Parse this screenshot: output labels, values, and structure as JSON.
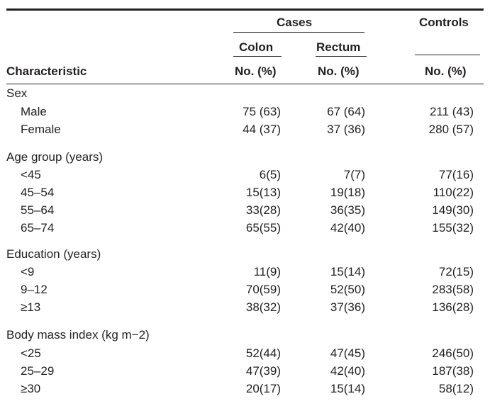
{
  "header": {
    "cases": "Cases",
    "controls": "Controls",
    "colon": "Colon",
    "rectum": "Rectum",
    "characteristic": "Characteristic",
    "colon_unit": "No. (%)",
    "rectum_unit": "No. (%)",
    "controls_unit": "No. (%)"
  },
  "sections": [
    {
      "title": "Sex",
      "rows": [
        {
          "label": "Male",
          "colon": "75 (63)",
          "rectum": "67 (64)",
          "controls": "211 (43)"
        },
        {
          "label": "Female",
          "colon": "44 (37)",
          "rectum": "37 (36)",
          "controls": "280 (57)"
        }
      ]
    },
    {
      "title": "Age group (years)",
      "rows": [
        {
          "label": "<45",
          "colon": "6(5)",
          "rectum": "7(7)",
          "controls": "77(16)"
        },
        {
          "label": "45–54",
          "colon": "15(13)",
          "rectum": "19(18)",
          "controls": "110(22)"
        },
        {
          "label": "55–64",
          "colon": "33(28)",
          "rectum": "36(35)",
          "controls": "149(30)"
        },
        {
          "label": "65–74",
          "colon": "65(55)",
          "rectum": "42(40)",
          "controls": "155(32)"
        }
      ]
    },
    {
      "title": "Education (years)",
      "rows": [
        {
          "label": "<9",
          "colon": "11(9)",
          "rectum": "15(14)",
          "controls": "72(15)"
        },
        {
          "label": "9–12",
          "colon": "70(59)",
          "rectum": "52(50)",
          "controls": "283(58)"
        },
        {
          "label": "≥13",
          "colon": "38(32)",
          "rectum": "37(36)",
          "controls": "136(28)"
        }
      ]
    },
    {
      "title": "Body mass index (kg m−2)",
      "rows": [
        {
          "label": "<25",
          "colon": "52(44)",
          "rectum": "47(45)",
          "controls": "246(50)"
        },
        {
          "label": "25–29",
          "colon": "47(39)",
          "rectum": "42(40)",
          "controls": "187(38)"
        },
        {
          "label": "≥30",
          "colon": "20(17)",
          "rectum": "15(14)",
          "controls": "58(12)"
        }
      ]
    }
  ]
}
